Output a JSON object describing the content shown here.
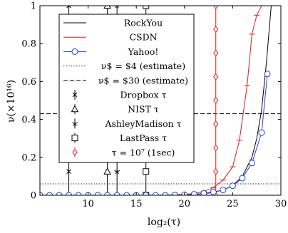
{
  "chart_data": {
    "type": "line",
    "xlabel": "log₂(τ)",
    "ylabel": "ν(×10¹⁶)",
    "xlim": [
      5,
      30
    ],
    "ylim": [
      0,
      1
    ],
    "xticks": [
      "10",
      "15",
      "20",
      "25",
      "30"
    ],
    "yticks": [
      "0",
      "0.2",
      "0.4",
      "0.6",
      "0.8",
      "1"
    ],
    "grid": false,
    "legend_position": "top-left",
    "series": [
      {
        "name": "RockYou",
        "color": "#000000",
        "style": "solid",
        "x": [
          5,
          10,
          15,
          18,
          20,
          21,
          22,
          23,
          24,
          25,
          26,
          27,
          27.5,
          28,
          28.5,
          29
        ],
        "y": [
          0,
          0,
          0,
          0.0005,
          0.002,
          0.004,
          0.008,
          0.015,
          0.028,
          0.05,
          0.1,
          0.2,
          0.3,
          0.45,
          0.7,
          1.0
        ]
      },
      {
        "name": "CSDN",
        "color": "#e31a1c",
        "style": "solid",
        "marker": "tick",
        "x": [
          5,
          10,
          15,
          18,
          20,
          21,
          22,
          23,
          24,
          25,
          25.7,
          26.5,
          27,
          27.5,
          28
        ],
        "y": [
          0,
          0,
          0,
          0.001,
          0.004,
          0.009,
          0.02,
          0.04,
          0.08,
          0.15,
          0.29,
          0.58,
          0.85,
          0.95,
          1.0
        ]
      },
      {
        "name": "Yahoo!",
        "color": "#1f3fd8",
        "style": "solid",
        "marker": "circle",
        "x": [
          5,
          6,
          7,
          8,
          9,
          10,
          11,
          12,
          13,
          14,
          15,
          16,
          17,
          18,
          19,
          20,
          21,
          22,
          23,
          24,
          25,
          26,
          27,
          28,
          28.6
        ],
        "y": [
          0,
          0,
          0,
          0,
          0,
          0,
          0,
          0,
          0,
          0,
          0,
          0,
          0,
          0,
          0.001,
          0.003,
          0.005,
          0.01,
          0.017,
          0.028,
          0.05,
          0.09,
          0.17,
          0.33,
          0.64
        ]
      }
    ],
    "reference_lines": [
      {
        "name": "ν$ = $4 (estimate)",
        "value": 0.06,
        "style": "dotted"
      },
      {
        "name": "ν$ = $30 (estimate)",
        "value": 0.43,
        "style": "dashed"
      }
    ],
    "vertical_markers": [
      {
        "name": "Dropbox τ",
        "x": 8,
        "marker": "x"
      },
      {
        "name": "NIST τ",
        "x": 12,
        "marker": "triangle"
      },
      {
        "name": "AshleyMadison τ",
        "x": 13,
        "marker": "star"
      },
      {
        "name": "LastPass τ",
        "x": 16,
        "marker": "square"
      },
      {
        "name": "τ = 10⁷ (1sec)",
        "x": 23.25,
        "marker": "diamond",
        "color": "#e31a1c"
      }
    ]
  },
  "legend": {
    "entries": [
      "RockYou",
      "CSDN",
      "Yahoo!",
      "ν$ = $4 (estimate)",
      "ν$ = $30 (estimate)",
      "Dropbox τ",
      "NIST τ",
      "AshleyMadison τ",
      "LastPass τ",
      "τ = 10⁷ (1sec)"
    ]
  }
}
